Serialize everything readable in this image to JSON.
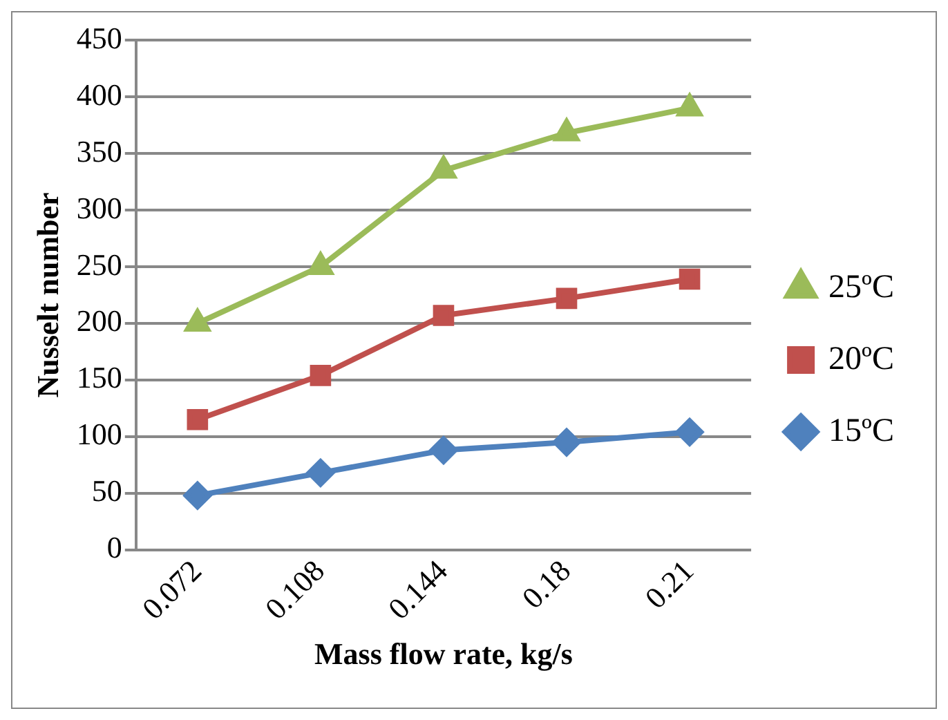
{
  "chart_data": {
    "type": "line",
    "xlabel": "Mass flow rate, kg/s",
    "ylabel": "Nusselt number",
    "categories": [
      "0.072",
      "0.108",
      "0.144",
      "0.18",
      "0.21"
    ],
    "series": [
      {
        "name": "25ºC",
        "color": "#9bbb59",
        "marker": "triangle",
        "values": [
          200,
          250,
          335,
          368,
          390
        ]
      },
      {
        "name": "20ºC",
        "color": "#c0504d",
        "marker": "square",
        "values": [
          115,
          154,
          207,
          222,
          239
        ]
      },
      {
        "name": "15ºC",
        "color": "#4f81bd",
        "marker": "diamond",
        "values": [
          48,
          68,
          88,
          95,
          104
        ]
      }
    ],
    "ylim": [
      0,
      450
    ],
    "yticks": [
      0,
      50,
      100,
      150,
      200,
      250,
      300,
      350,
      400,
      450
    ],
    "grid": "y",
    "legend": "right"
  }
}
